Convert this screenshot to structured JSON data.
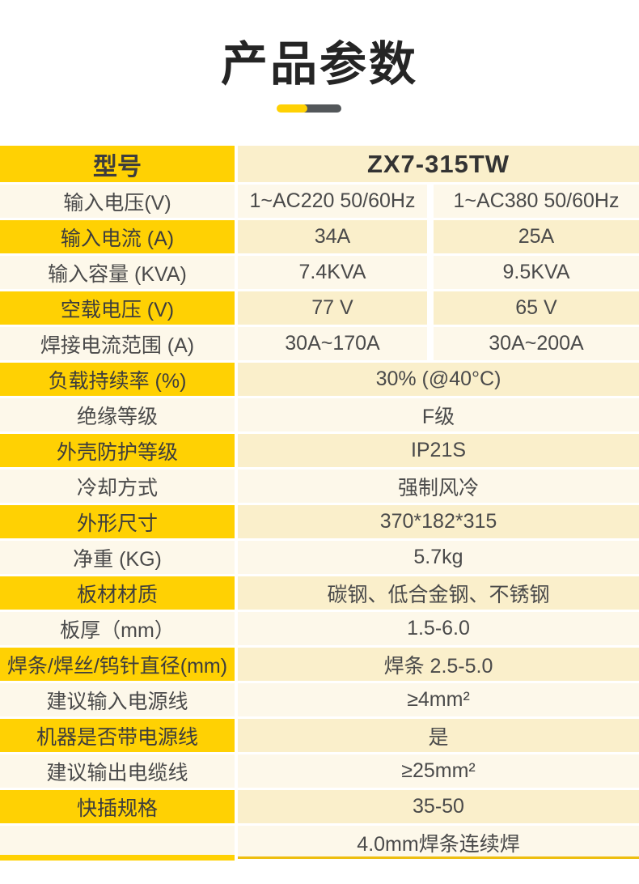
{
  "page": {
    "title": "产品参数",
    "accent_yellow": "#FFD103",
    "accent_dark_gray": "#53575A",
    "row_value_tan": "#FAEFCB",
    "row_light_cream": "#FDF8EA"
  },
  "table": {
    "rows": [
      {
        "type": "header",
        "label": "型号",
        "value": "ZX7-315TW"
      },
      {
        "type": "light",
        "label": "输入电压(V)",
        "values": [
          "1~AC220 50/60Hz",
          "1~AC380 50/60Hz"
        ]
      },
      {
        "type": "yellow",
        "label": "输入电流 (A)",
        "values": [
          "34A",
          "25A"
        ]
      },
      {
        "type": "light",
        "label": "输入容量 (KVA)",
        "values": [
          "7.4KVA",
          "9.5KVA"
        ]
      },
      {
        "type": "yellow",
        "label": "空载电压 (V)",
        "values": [
          "77 V",
          "65 V"
        ]
      },
      {
        "type": "light",
        "label": "焊接电流范围 (A)",
        "values": [
          "30A~170A",
          "30A~200A"
        ]
      },
      {
        "type": "yellow",
        "label": "负载持续率 (%)",
        "value": "30% (@40°C)"
      },
      {
        "type": "light",
        "label": "绝缘等级",
        "value": "F级"
      },
      {
        "type": "yellow",
        "label": "外壳防护等级",
        "value": "IP21S"
      },
      {
        "type": "light",
        "label": "冷却方式",
        "value": "强制风冷"
      },
      {
        "type": "yellow",
        "label": "外形尺寸",
        "value": "370*182*315"
      },
      {
        "type": "light",
        "label": "净重 (KG)",
        "value": "5.7kg"
      },
      {
        "type": "yellow",
        "label": "板材材质",
        "value": "碳钢、低合金钢、不锈钢"
      },
      {
        "type": "light",
        "label": "板厚（mm）",
        "value": "1.5-6.0"
      },
      {
        "type": "yellow",
        "label": "焊条/焊丝/钨针直径(mm)",
        "value": "焊条 2.5-5.0"
      },
      {
        "type": "light",
        "label": "建议输入电源线",
        "value": "≥4mm²"
      },
      {
        "type": "yellow",
        "label": "机器是否带电源线",
        "value": "是"
      },
      {
        "type": "light",
        "label": "建议输出电缆线",
        "value": "≥25mm²"
      },
      {
        "type": "yellow",
        "label": "快插规格",
        "value": "35-50"
      },
      {
        "type": "light",
        "label": "",
        "value": "4.0mm焊条连续焊"
      }
    ]
  }
}
